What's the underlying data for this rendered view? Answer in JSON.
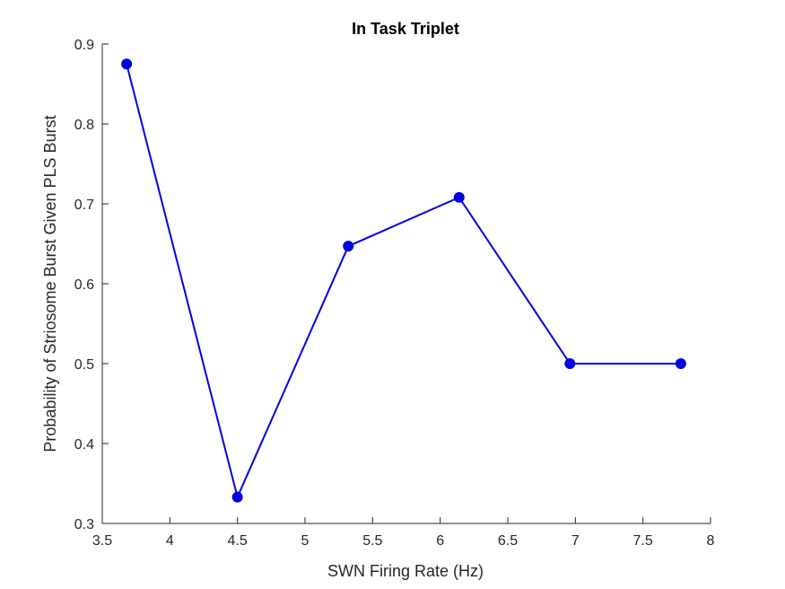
{
  "chart_data": {
    "type": "line",
    "title": "In Task Triplet",
    "xlabel": "SWN Firing Rate (Hz)",
    "ylabel": "Probability of Striosome Burst Given PLS Burst",
    "xlim": [
      3.5,
      8
    ],
    "ylim": [
      0.3,
      0.9
    ],
    "xticks": [
      "3.5",
      "4",
      "4.5",
      "5",
      "5.5",
      "6",
      "6.5",
      "7",
      "7.5",
      "8"
    ],
    "yticks": [
      "0.3",
      "0.4",
      "0.5",
      "0.6",
      "0.7",
      "0.8",
      "0.9"
    ],
    "grid": false,
    "box": false,
    "series": [
      {
        "x": [
          3.68,
          4.5,
          5.32,
          6.14,
          6.96,
          7.78
        ],
        "y": [
          0.875,
          0.333,
          0.647,
          0.708,
          0.5,
          0.5
        ],
        "color": "#0000e0",
        "marker": "circle"
      }
    ]
  }
}
